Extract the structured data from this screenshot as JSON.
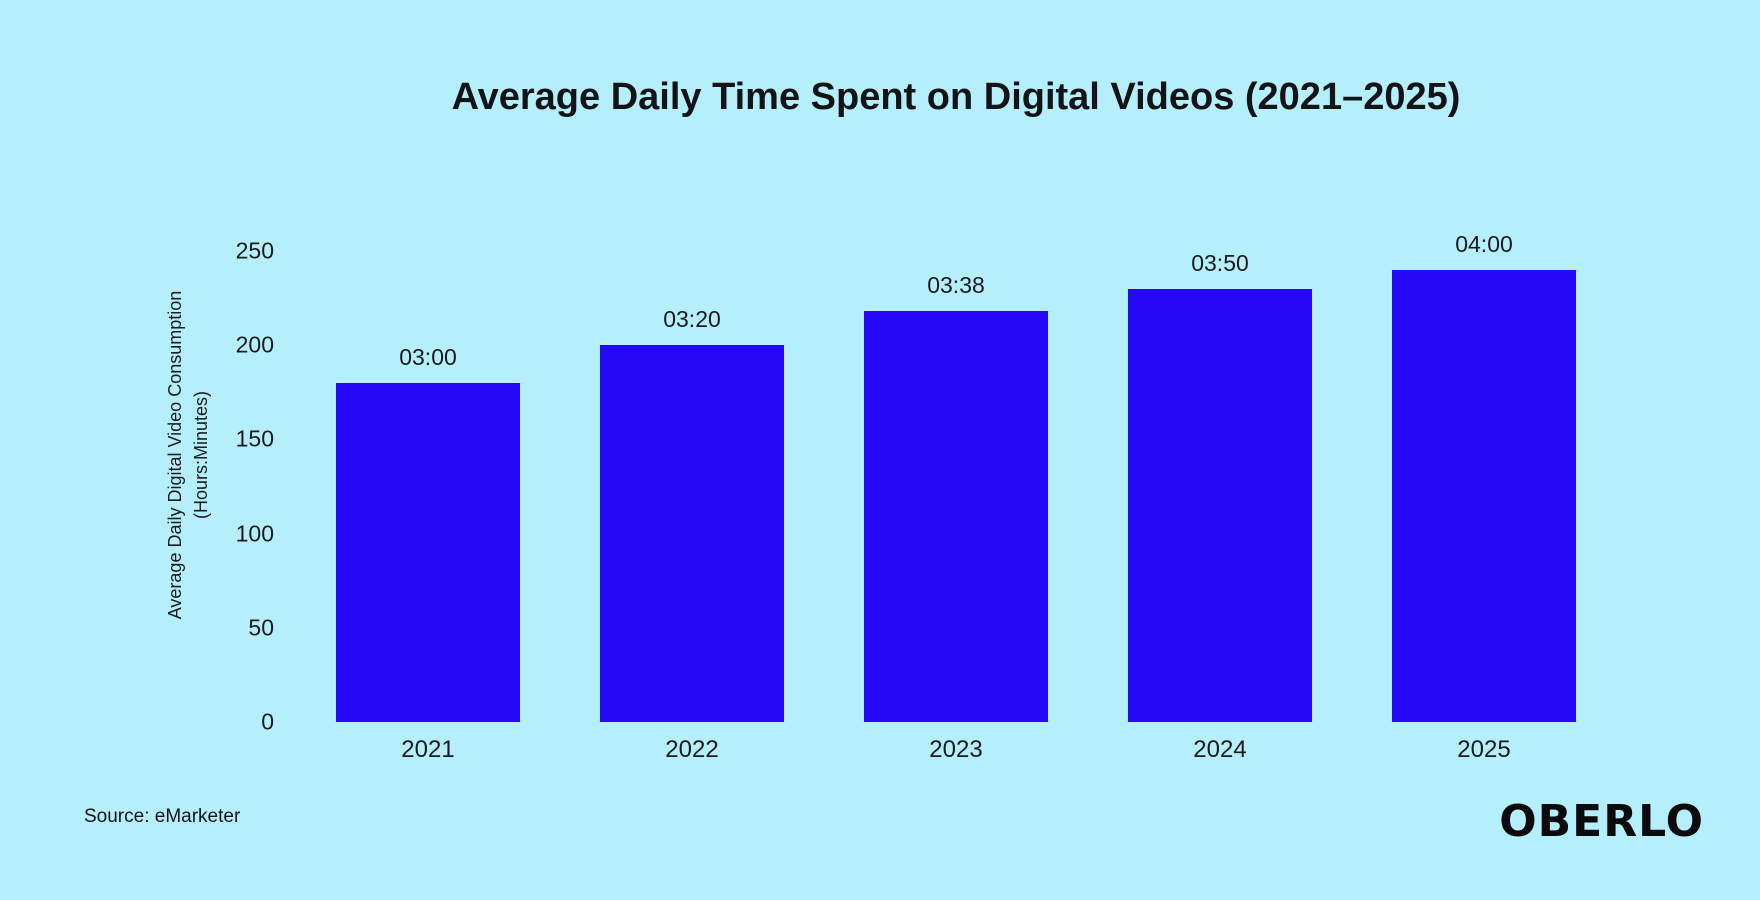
{
  "title": "Average Daily Time Spent on Digital Videos (2021–2025)",
  "source": "Source: eMarketer",
  "brand": "OBERLO",
  "colors": {
    "background": "#b5effc",
    "bar": "#2508f6",
    "text": "#1b1b1e"
  },
  "chart_data": {
    "type": "bar",
    "title": "Average Daily Time Spent on Digital Videos (2021–2025)",
    "categories": [
      "2021",
      "2022",
      "2023",
      "2024",
      "2025"
    ],
    "values": [
      180,
      200,
      218,
      230,
      240
    ],
    "value_labels": [
      "03:00",
      "03:20",
      "03:38",
      "03:50",
      "04:00"
    ],
    "values_unit": "minutes",
    "xlabel": "",
    "ylabel_line1": "Average Daily Digital Video Consumption",
    "ylabel_line2": "(Hours:Minutes)",
    "yticks": [
      0,
      50,
      100,
      150,
      200,
      250
    ],
    "ylim": [
      0,
      250
    ],
    "grid": false,
    "legend": false
  }
}
